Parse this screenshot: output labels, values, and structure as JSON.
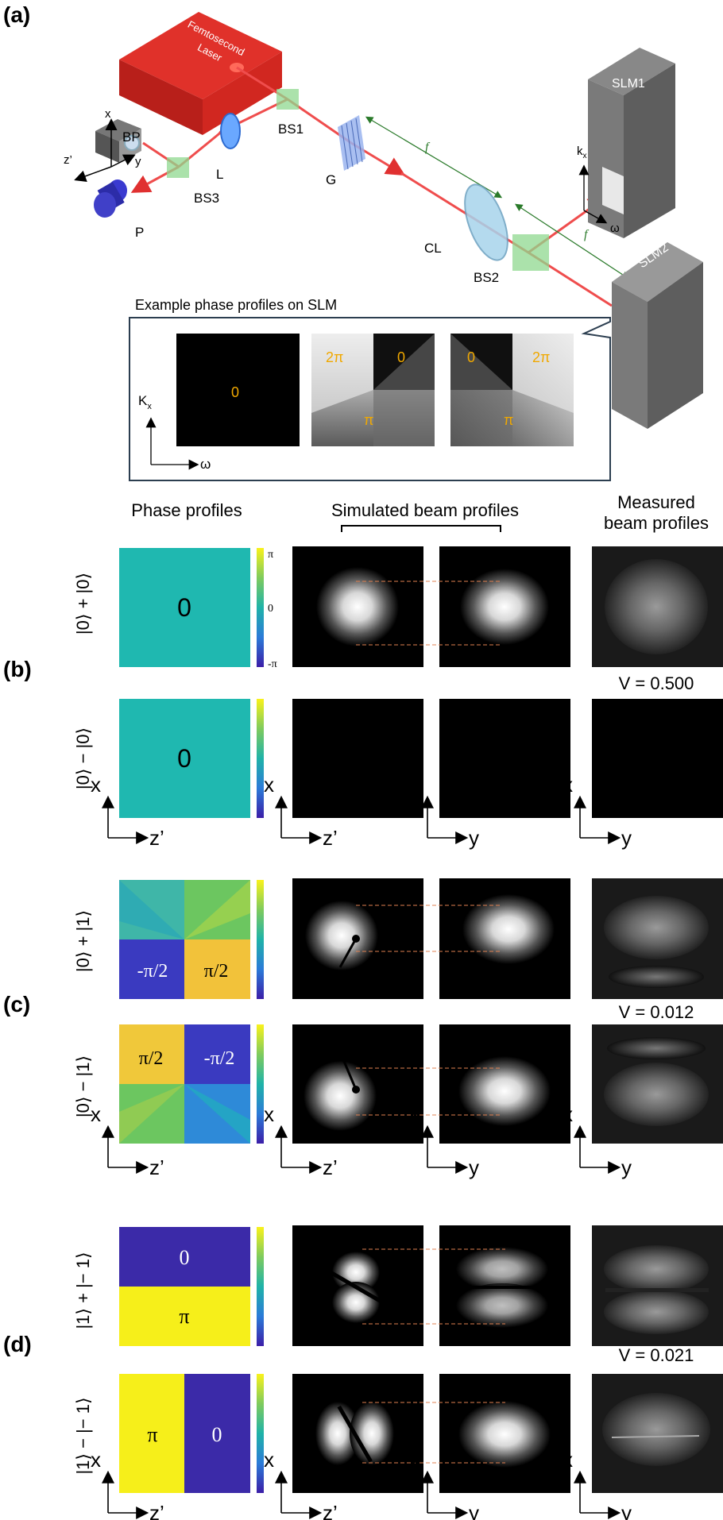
{
  "panels": {
    "a": "(a)",
    "b": "(b)",
    "c": "(c)",
    "d": "(d)"
  },
  "setup": {
    "laser": [
      "Femtosecond",
      "Laser"
    ],
    "bp": "BP",
    "l": "L",
    "bs1": "BS1",
    "bs2": "BS2",
    "bs3": "BS3",
    "g": "G",
    "cl": "CL",
    "p": "P",
    "slm1": "SLM1",
    "slm2": "SLM2",
    "f": "f",
    "axes": {
      "x": "x",
      "y": "y",
      "z": "z’",
      "kx_sub": "k",
      "kx_subscript": "x",
      "w": "ω"
    }
  },
  "inset": {
    "title": "Example phase profiles on SLM",
    "kx": "K",
    "kx_sub": "x",
    "w": "ω",
    "p1": "0",
    "p2": [
      "2π",
      "0",
      "π"
    ],
    "p3": [
      "0",
      "2π",
      "π"
    ]
  },
  "columns": {
    "phase": "Phase profiles",
    "simulated": "Simulated beam profiles",
    "measured": [
      "Measured",
      "beam profiles"
    ]
  },
  "colorbar": {
    "max": "π",
    "mid": "0",
    "min": "-π"
  },
  "axis_labels": {
    "x": "x",
    "z": "z’",
    "y": "y"
  },
  "rows": {
    "b1": {
      "state": "|0⟩ + |0⟩",
      "phase": "0"
    },
    "b2": {
      "state": "|0⟩ − |0⟩",
      "phase": "0"
    },
    "c1": {
      "state": "|0⟩ + |1⟩",
      "phase_left": "-π/2",
      "phase_right": "π/2"
    },
    "c2": {
      "state": "|0⟩ − |1⟩",
      "phase_left": "π/2",
      "phase_right": "-π/2"
    },
    "d1": {
      "state": "|1⟩ + |− 1⟩",
      "phase_top": "0",
      "phase_bottom": "π"
    },
    "d2": {
      "state": "|1⟩ − |− 1⟩",
      "phase_left": "π",
      "phase_right": "0"
    }
  },
  "visibility": {
    "b": "V = 0.500",
    "c": "V = 0.012",
    "d": "V = 0.021"
  }
}
